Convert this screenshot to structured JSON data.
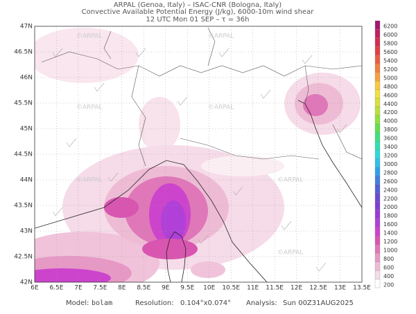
{
  "header": {
    "lines": [
      "ARPAL (Genoa, Italy)  –  ISAC-CNR (Bologna, Italy)",
      "Convective Available Potential Energy (J/kg), 6000-10m wind shear",
      "12 UTC Mon 01 SEP  –  τ = 36h"
    ]
  },
  "map": {
    "lon_labels": [
      "6E",
      "6.5E",
      "7E",
      "7.5E",
      "8E",
      "8.5E",
      "9E",
      "9.5E",
      "10E",
      "10.5E",
      "11E",
      "11.5E",
      "12E",
      "12.5E",
      "13E",
      "13.5E"
    ],
    "lat_labels": [
      "47N",
      "46.5N",
      "46N",
      "45.5N",
      "45N",
      "44.5N",
      "44N",
      "43.5N",
      "43N",
      "42.5N",
      "42N"
    ],
    "watermark": "©ARPAL"
  },
  "colorbar": {
    "levels": [
      6200,
      6000,
      5800,
      5600,
      5400,
      5200,
      5000,
      4800,
      4600,
      4400,
      4200,
      4000,
      3800,
      3600,
      3400,
      3200,
      3000,
      2800,
      2600,
      2400,
      2200,
      2000,
      1800,
      1600,
      1400,
      1200,
      1000,
      800,
      600,
      400,
      200
    ],
    "colors": [
      "#a01870",
      "#c02060",
      "#d03050",
      "#e04040",
      "#e86040",
      "#f08040",
      "#f8a040",
      "#f8c840",
      "#f0e040",
      "#d8e040",
      "#b8e040",
      "#90e040",
      "#60e050",
      "#40e080",
      "#30e0b0",
      "#30d8d8",
      "#30c0e8",
      "#30a0e8",
      "#4080e0",
      "#5060d8",
      "#6a4ad0",
      "#8040d0",
      "#9a3ad8",
      "#b040d8",
      "#cc44cc",
      "#d855b0",
      "#df77b8",
      "#e699c5",
      "#eebbd5",
      "#f5dce8",
      "#ffffff"
    ]
  },
  "footer": {
    "model_label": "Model:",
    "model": "bolam",
    "resolution_label": "Resolution:",
    "resolution": "0.104°x0.074°",
    "analysis_label": "Analysis:",
    "analysis": "Sun 00Z31AUG2025"
  }
}
